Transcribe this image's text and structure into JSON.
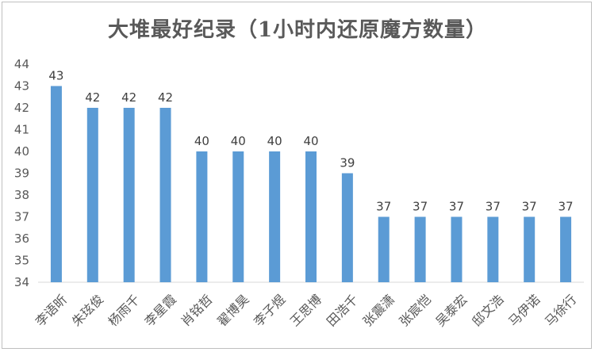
{
  "chart_data": {
    "type": "bar",
    "title": "大堆最好纪录（1小时内还原魔方数量）",
    "categories": [
      "李语昕",
      "朱玹俊",
      "杨雨千",
      "李星霞",
      "肖铭哲",
      "翟博昊",
      "李子煜",
      "王思博",
      "田浩千",
      "张震潇",
      "张宸恺",
      "吴泰宏",
      "邸文浩",
      "马伊诺",
      "马徐行"
    ],
    "values": [
      43,
      42,
      42,
      42,
      40,
      40,
      40,
      40,
      39,
      37,
      37,
      37,
      37,
      37,
      37
    ],
    "ylim": [
      34,
      44
    ],
    "yticks": [
      34,
      35,
      36,
      37,
      38,
      39,
      40,
      41,
      42,
      43,
      44
    ],
    "xlabel": "",
    "ylabel": "",
    "grid": false,
    "bar_color": "#5b9bd5",
    "data_labels": true
  }
}
